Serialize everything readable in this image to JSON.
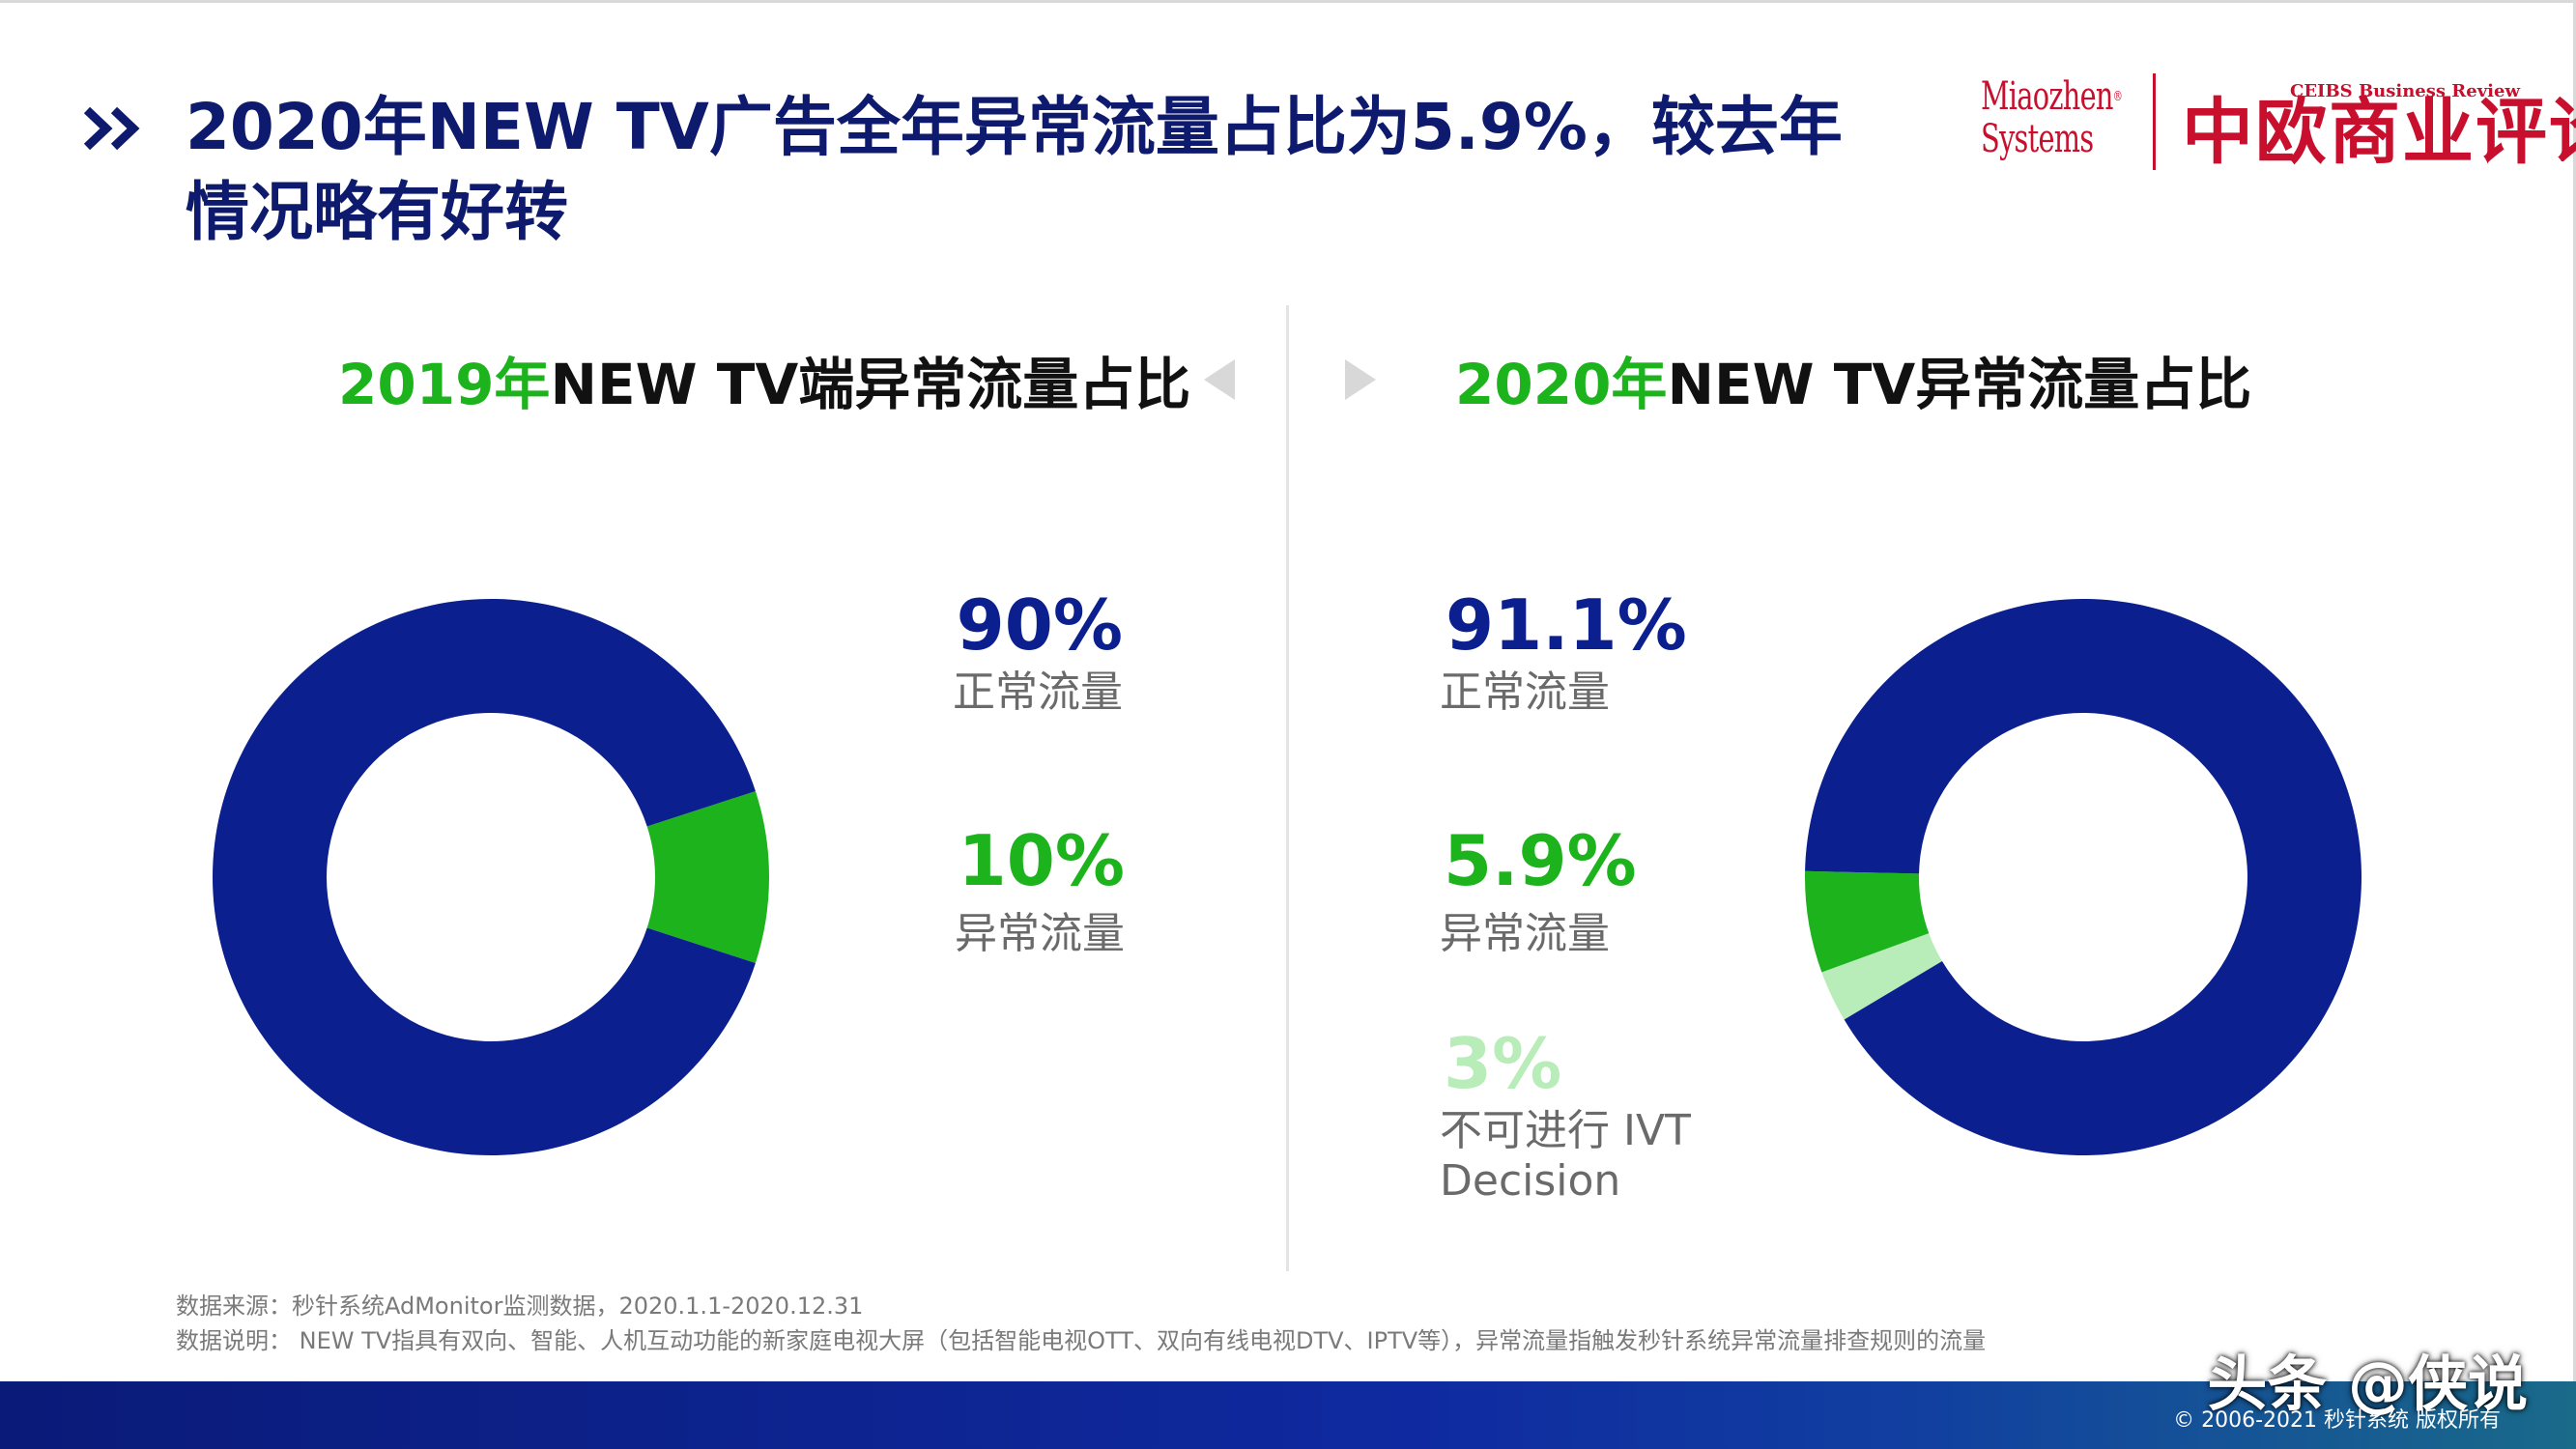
{
  "header": {
    "title_line1": "2020年NEW TV广告全年异常流量占比为5.9%，较去年",
    "title_line2": "情况略有好转"
  },
  "brand": {
    "miaozhen_line1": "Miaozhen",
    "miaozhen_line2": "Systems",
    "miaozhen_reg": "®",
    "ceibs_en": "CEIBS Business Review",
    "ceibs_cn": "中欧商业评论"
  },
  "colors": {
    "normal": "#0b1f8f",
    "abnormal": "#1db31d",
    "undecided": "#b8ecb8",
    "title": "#0d1a6e"
  },
  "chart_data": [
    {
      "type": "pie",
      "title_year": "2019年",
      "title_rest": "NEW TV端异常流量占比",
      "slices": [
        {
          "label": "正常流量",
          "value": 90,
          "value_text": "90%",
          "color": "#0b1f8f"
        },
        {
          "label": "异常流量",
          "value": 10,
          "value_text": "10%",
          "color": "#1db31d"
        }
      ]
    },
    {
      "type": "pie",
      "title_year": "2020年",
      "title_rest": "NEW TV异常流量占比",
      "slices": [
        {
          "label": "正常流量",
          "value": 91.1,
          "value_text": "91.1%",
          "color": "#0b1f8f"
        },
        {
          "label": "异常流量",
          "value": 5.9,
          "value_text": "5.9%",
          "color": "#1db31d"
        },
        {
          "label": "不可进行 IVT Decision",
          "label_line1": "不可进行 IVT",
          "label_line2": "Decision",
          "value": 3,
          "value_text": "3%",
          "color": "#b8ecb8"
        }
      ]
    }
  ],
  "notes": {
    "source": "数据来源：秒针系统AdMonitor监测数据，2020.1.1-2020.12.31",
    "explanation": "数据说明：  NEW TV指具有双向、智能、人机互动功能的新家庭电视大屏（包括智能电视OTT、双向有线电视DTV、IPTV等），异常流量指触发秒针系统异常流量排查规则的流量"
  },
  "footer": {
    "watermark": "头条 @侠说",
    "copyright": "© 2006-2021 秒针系统 版权所有"
  }
}
